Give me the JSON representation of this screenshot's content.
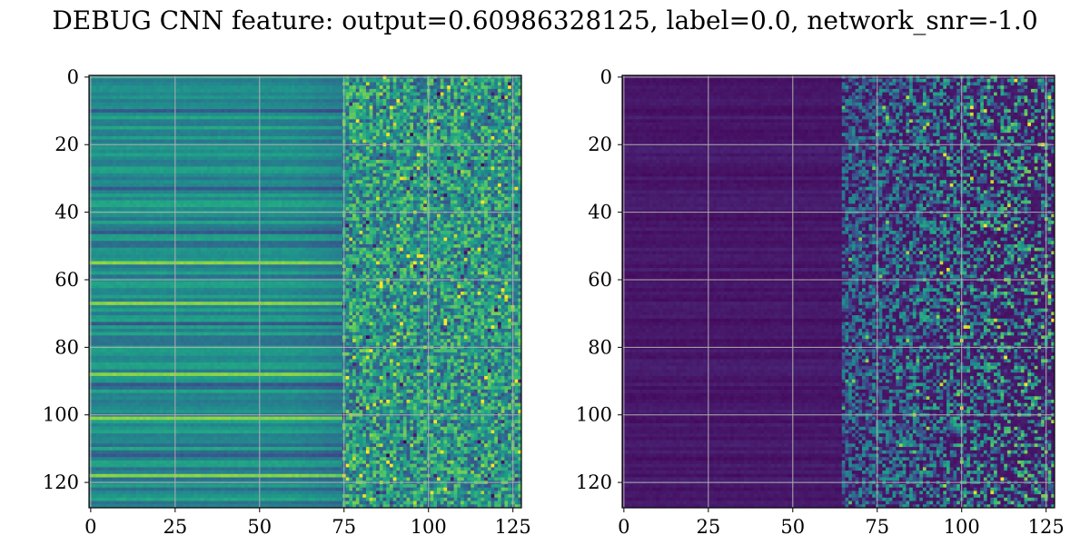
{
  "chart_data": {
    "title": "DEBUG CNN feature: output=0.60986328125, label=0.0, network_snr=-1.0",
    "panels": [
      {
        "type": "heatmap",
        "colormap": "viridis",
        "rows": 128,
        "cols": 128,
        "xlim": [
          0,
          127
        ],
        "ylim": [
          127,
          0
        ],
        "xticks": [
          0,
          25,
          50,
          75,
          100,
          125
        ],
        "yticks": [
          0,
          20,
          40,
          60,
          80,
          100,
          120
        ],
        "grid": true,
        "pattern": "horizontal bands that are smooth for columns 0-75 and noisy for columns 75-127; mid-range values (teal/green) with bright yellow bands around rows 55, 67, 88, 101"
      },
      {
        "type": "heatmap",
        "colormap": "viridis",
        "rows": 128,
        "cols": 128,
        "xlim": [
          0,
          127
        ],
        "ylim": [
          127,
          0
        ],
        "xticks": [
          0,
          25,
          50,
          75,
          100,
          125
        ],
        "yticks": [
          0,
          20,
          40,
          60,
          80,
          100,
          120
        ],
        "grid": true,
        "pattern": "mostly low values (dark purple) for columns 0-70; sparse noisy higher values (blue/green/yellow) for columns 70-127"
      }
    ]
  }
}
